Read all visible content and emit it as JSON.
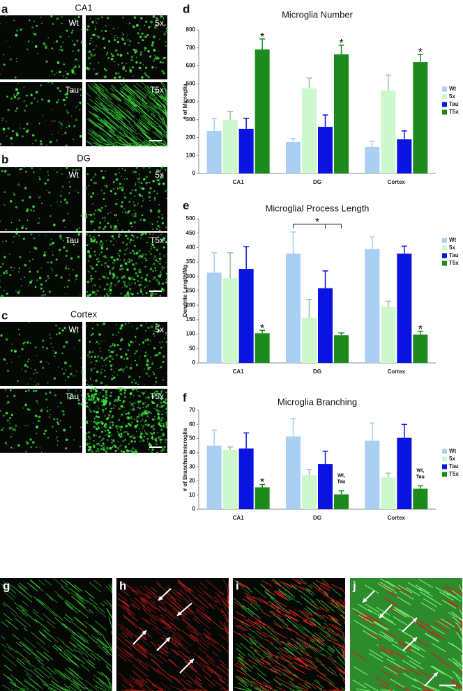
{
  "panels": [
    {
      "letter": "a",
      "title": "CA1",
      "images": [
        "Wt",
        "5x",
        "Tau",
        "T5x"
      ]
    },
    {
      "letter": "b",
      "title": "DG",
      "images": [
        "Wt",
        "5x",
        "Tau",
        "T5x"
      ]
    },
    {
      "letter": "c",
      "title": "Cortex",
      "images": [
        "Wt",
        "5x",
        "Tau",
        "T5x"
      ]
    }
  ],
  "bottom_panels": [
    "g",
    "h",
    "i",
    "j"
  ],
  "chart_data": [
    {
      "type": "bar",
      "panel_label": "d",
      "title": "Microglia Number",
      "ylabel": "# of Microglia",
      "categories": [
        "CA1",
        "DG",
        "Cortex"
      ],
      "series": [
        {
          "name": "Wt",
          "color": "#a9cff2",
          "values": [
            237,
            175,
            148
          ],
          "errors": [
            70,
            20,
            31
          ]
        },
        {
          "name": "5x",
          "color": "#cdf7cd",
          "values": [
            299,
            474,
            462
          ],
          "errors": [
            46,
            58,
            86
          ]
        },
        {
          "name": "Tau",
          "color": "#0a14e0",
          "values": [
            249,
            260,
            190
          ],
          "errors": [
            58,
            66,
            47
          ]
        },
        {
          "name": "T5x",
          "color": "#1c8a1c",
          "values": [
            691,
            664,
            621
          ],
          "errors": [
            59,
            51,
            43
          ]
        }
      ],
      "ylim": [
        0,
        800
      ],
      "yticks": [
        0,
        100,
        200,
        300,
        400,
        500,
        600,
        700,
        800
      ],
      "annotations": [
        {
          "text": "*",
          "category": 0,
          "series": 3
        },
        {
          "text": "*",
          "category": 1,
          "series": 3
        },
        {
          "text": "*",
          "category": 2,
          "series": 3
        }
      ]
    },
    {
      "type": "bar",
      "panel_label": "e",
      "title": "Microglial Process Length",
      "ylabel": "Dendrite Length/Mg",
      "categories": [
        "CA1",
        "DG",
        "Cortex"
      ],
      "series": [
        {
          "name": "Wt",
          "color": "#a9cff2",
          "values": [
            313,
            379,
            395
          ],
          "errors": [
            69,
            75,
            42
          ]
        },
        {
          "name": "5x",
          "color": "#cdf7cd",
          "values": [
            294,
            157,
            194
          ],
          "errors": [
            88,
            63,
            20
          ]
        },
        {
          "name": "Tau",
          "color": "#0a14e0",
          "values": [
            326,
            259,
            379
          ],
          "errors": [
            77,
            60,
            26
          ]
        },
        {
          "name": "T5x",
          "color": "#1c8a1c",
          "values": [
            103,
            96,
            98
          ],
          "errors": [
            10,
            8,
            12
          ]
        }
      ],
      "ylim": [
        0,
        500
      ],
      "yticks": [
        0,
        50,
        100,
        150,
        200,
        250,
        300,
        350,
        400,
        450,
        500
      ],
      "annotations": [
        {
          "text": "*",
          "category": 0,
          "series": 3
        },
        {
          "text": "*",
          "category": 1,
          "bracket": [
            0,
            3
          ]
        },
        {
          "text": "*",
          "category": 2,
          "series": 3
        }
      ]
    },
    {
      "type": "bar",
      "panel_label": "f",
      "title": "Microglia Branching",
      "ylabel": "# of Branches/microglia",
      "categories": [
        "CA1",
        "DG",
        "Cortex"
      ],
      "series": [
        {
          "name": "Wt",
          "color": "#a9cff2",
          "values": [
            45,
            51.5,
            48.5
          ],
          "errors": [
            11,
            12.5,
            12.5
          ]
        },
        {
          "name": "5x",
          "color": "#cdf7cd",
          "values": [
            42,
            24,
            22.5
          ],
          "errors": [
            2,
            4,
            3
          ]
        },
        {
          "name": "Tau",
          "color": "#0a14e0",
          "values": [
            43,
            32,
            50.5
          ],
          "errors": [
            11,
            9,
            9.5
          ]
        },
        {
          "name": "T5x",
          "color": "#1c8a1c",
          "values": [
            15.5,
            10.5,
            14.5
          ],
          "errors": [
            2,
            2.5,
            2
          ]
        }
      ],
      "ylim": [
        0,
        70
      ],
      "yticks": [
        0,
        10,
        20,
        30,
        40,
        50,
        60,
        70
      ],
      "annotations": [
        {
          "text": "*",
          "category": 0,
          "series": 3
        },
        {
          "lines": [
            "Wt,",
            "Tau"
          ],
          "category": 1,
          "series": 3
        },
        {
          "lines": [
            "Wt,",
            "Tau"
          ],
          "category": 2,
          "series": 3
        }
      ]
    }
  ]
}
